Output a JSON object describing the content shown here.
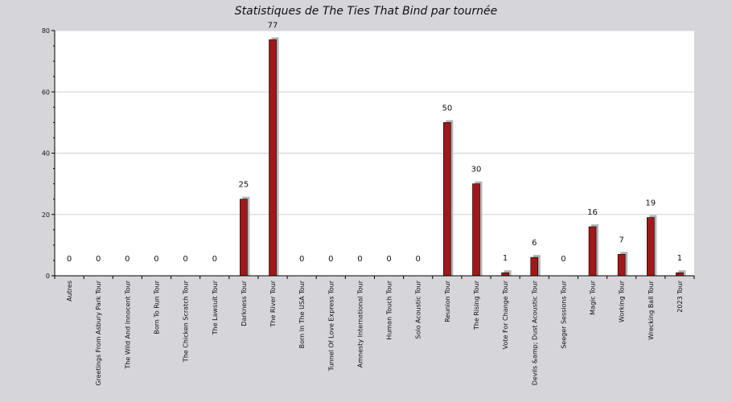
{
  "chart_data": {
    "type": "bar",
    "title": "Statistiques de The Ties That Bind par tournée",
    "xlabel": "",
    "ylabel": "",
    "ylim": [
      0,
      80
    ],
    "yticks": [
      0,
      20,
      40,
      60,
      80
    ],
    "grid": true,
    "bar_color": "#a01818",
    "shadow_color": "#b4b4b4",
    "categories": [
      "Autres",
      "Greetings From Asbury Park Tour",
      "The Wild And Innocent Tour",
      "Born To Run Tour",
      "The Chicken Scratch Tour",
      "The Lawsuit Tour",
      "Darkness Tour",
      "The River Tour",
      "Born In The USA Tour",
      "Tunnel Of Love Express Tour",
      "Amnesty International Tour",
      "Human Touch Tour",
      "Solo Acoustic Tour",
      "Reunion Tour",
      "The Rising Tour",
      "Vote For Change Tour",
      "Devils &amp; Dust Acoustic Tour",
      "Seeger Sessions Tour",
      "Magic Tour",
      "Working Tour",
      "Wrecking Ball Tour",
      "2023 Tour"
    ],
    "values": [
      0,
      0,
      0,
      0,
      0,
      0,
      25,
      77,
      0,
      0,
      0,
      0,
      0,
      50,
      30,
      1,
      6,
      0,
      16,
      7,
      19,
      1
    ]
  }
}
